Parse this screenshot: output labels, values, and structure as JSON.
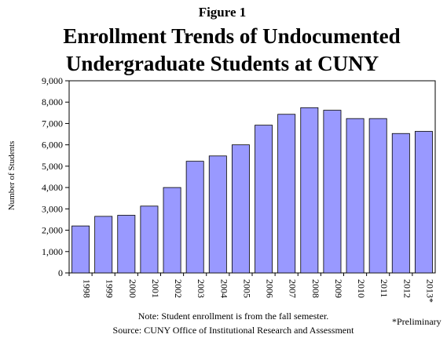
{
  "figure_label": "Figure 1",
  "note_line1": "Note: Student enrollment is from the fall semester.",
  "note_line2": "Source: CUNY Office of Institutional Research and Assessment",
  "preliminary_note": "*Preliminary",
  "colors": {
    "bar_fill": "#9999ff",
    "bar_stroke": "#000000",
    "background": "#ffffff"
  },
  "chart_data": {
    "type": "bar",
    "title": "Enrollment Trends of Undocumented Undergraduate Students at CUNY",
    "title_lines": [
      "Enrollment Trends of Undocumented",
      "Undergraduate Students at CUNY"
    ],
    "xlabel": "",
    "ylabel": "Number of Students",
    "ylim": [
      0,
      9000
    ],
    "y_ticks": [
      0,
      1000,
      2000,
      3000,
      4000,
      5000,
      6000,
      7000,
      8000,
      9000
    ],
    "y_tick_labels": [
      "0",
      "1,000",
      "2,000",
      "3,000",
      "4,000",
      "5,000",
      "6,000",
      "7,000",
      "8,000",
      "9,000"
    ],
    "grid": false,
    "legend": "none",
    "categories": [
      "1998",
      "1999",
      "2000",
      "2001",
      "2002",
      "2003",
      "2004",
      "2005",
      "2006",
      "2007",
      "2008",
      "2009",
      "2010",
      "2011",
      "2012",
      "2013*"
    ],
    "values": [
      2200,
      2650,
      2700,
      3130,
      4000,
      5230,
      5480,
      6000,
      6920,
      7430,
      7740,
      7620,
      7230,
      7230,
      6530,
      6630
    ]
  }
}
